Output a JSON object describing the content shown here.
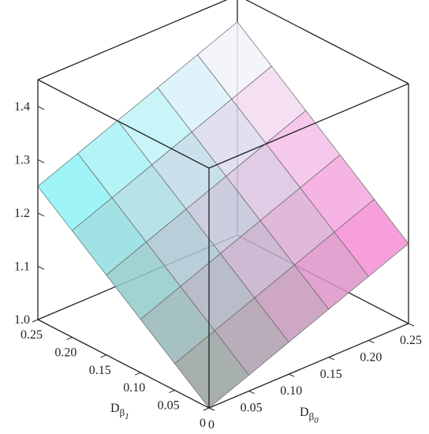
{
  "chart_data": {
    "type": "surface3d",
    "x": [
      0,
      0.05,
      0.1,
      0.15,
      0.2,
      0.25
    ],
    "y": [
      0,
      0.05,
      0.1,
      0.15,
      0.2,
      0.25
    ],
    "z": [
      [
        1,
        1.03,
        1.06,
        1.09,
        1.12,
        1.15
      ],
      [
        1.05,
        1.08,
        1.11,
        1.14,
        1.17,
        1.2
      ],
      [
        1.1,
        1.13,
        1.16,
        1.19,
        1.22,
        1.25
      ],
      [
        1.15,
        1.18,
        1.21,
        1.24,
        1.27,
        1.3
      ],
      [
        1.2,
        1.23,
        1.26,
        1.29,
        1.32,
        1.35
      ],
      [
        1.25,
        1.28,
        1.31,
        1.34,
        1.37,
        1.4
      ]
    ],
    "xlim": [
      0,
      0.25
    ],
    "ylim": [
      0,
      0.25
    ],
    "zlim": [
      1.0,
      1.45
    ],
    "xticks": [
      0,
      0.05,
      {
        "value": 0.1,
        "label": "0.10"
      },
      0.15,
      {
        "value": 0.2,
        "label": "0.20"
      },
      0.25
    ],
    "yticks": [
      0,
      0.05,
      {
        "value": 0.1,
        "label": "0.10"
      },
      0.15,
      {
        "value": 0.2,
        "label": "0.20"
      },
      0.25
    ],
    "zticks": [
      {
        "value": 1,
        "label": "1.0"
      },
      1.1,
      1.2,
      1.3,
      1.4
    ],
    "x_label": {
      "text": "D",
      "sub": "β",
      "subsub": "0"
    },
    "y_label": {
      "text": "D",
      "sub": "β",
      "subsub": "1"
    },
    "colors": {
      "origin": "#8f9a8f",
      "x_end": "#ff7fd8",
      "y_end": "#7ffcff",
      "far": "#ffffff"
    }
  }
}
